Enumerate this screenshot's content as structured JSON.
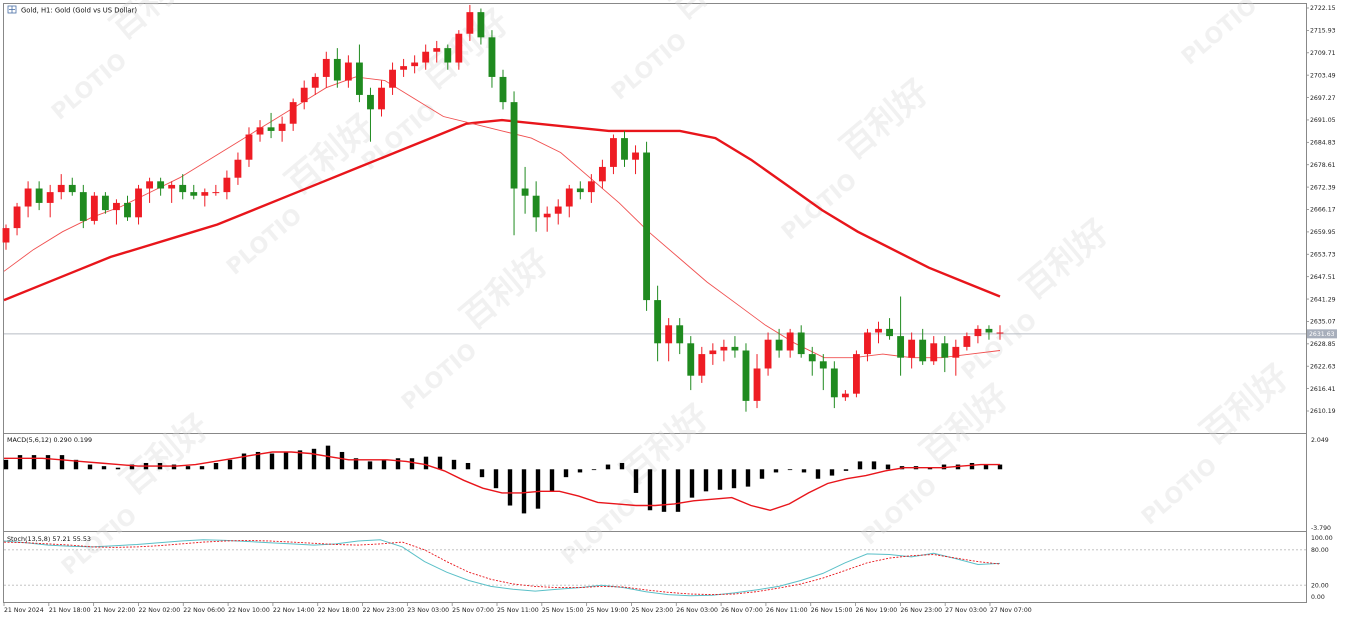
{
  "window": {
    "title": "Gold, H1:  Gold (Gold vs US Dollar)",
    "icon": "chart-window-icon"
  },
  "watermark": {
    "brand": "PLOTIO",
    "chinese": "百利好"
  },
  "colors": {
    "bull": "#1f8a1f",
    "bear": "#ee1c24",
    "ma_slow": "#e8151b",
    "ma_fast": "#f05050",
    "macd_bar": "#000000",
    "macd_signal": "#e8151b",
    "stoch_main": "#5bc0c8",
    "stoch_signal": "#e8151b",
    "last_price_line": "#b8bcc4",
    "price_tag_bg": "#a7aebb"
  },
  "price_axis": {
    "ticks": [
      "2722.15",
      "2715.93",
      "2709.71",
      "2703.49",
      "2697.27",
      "2691.05",
      "2684.83",
      "2678.61",
      "2672.39",
      "2666.17",
      "2659.95",
      "2653.73",
      "2647.51",
      "2641.29",
      "2635.07",
      "2628.85",
      "2622.63",
      "2616.41",
      "2610.19"
    ],
    "current_price": "2631.63"
  },
  "time_axis": {
    "labels": [
      "21 Nov 2024",
      "21 Nov 18:00",
      "21 Nov 22:00",
      "22 Nov 02:00",
      "22 Nov 06:00",
      "22 Nov 10:00",
      "22 Nov 14:00",
      "22 Nov 18:00",
      "22 Nov 23:00",
      "23 Nov 03:00",
      "25 Nov 07:00",
      "25 Nov 11:00",
      "25 Nov 15:00",
      "25 Nov 19:00",
      "25 Nov 23:00",
      "26 Nov 03:00",
      "26 Nov 07:00",
      "26 Nov 11:00",
      "26 Nov 15:00",
      "26 Nov 19:00",
      "26 Nov 23:00",
      "27 Nov 03:00",
      "27 Nov 07:00"
    ]
  },
  "macd": {
    "label": "MACD(5,6,12) 0.290 0.199",
    "axis_top": "2.049",
    "axis_bottom": "-3.790"
  },
  "stoch": {
    "label": "Stoch(13,5,8) 57.21 55.53",
    "ticks": [
      "100.00",
      "80.00",
      "20.00",
      "0.00"
    ]
  },
  "chart_data": [
    {
      "type": "candlestick",
      "title": "Gold, H1:  Gold (Gold vs US Dollar)",
      "ylim": [
        2604.5,
        2723.8
      ],
      "ohlc": [
        [
          2657,
          2662,
          2655,
          2661
        ],
        [
          2661,
          2668,
          2659,
          2667
        ],
        [
          2667,
          2674,
          2664,
          2672
        ],
        [
          2672,
          2674,
          2666,
          2668
        ],
        [
          2668,
          2673,
          2664,
          2671
        ],
        [
          2671,
          2676,
          2669,
          2673
        ],
        [
          2673,
          2675,
          2670,
          2671
        ],
        [
          2671,
          2673,
          2661,
          2663
        ],
        [
          2663,
          2671,
          2662,
          2670
        ],
        [
          2670,
          2671,
          2665,
          2666
        ],
        [
          2666,
          2669,
          2662,
          2668
        ],
        [
          2668,
          2670,
          2663,
          2664
        ],
        [
          2664,
          2673,
          2662,
          2672
        ],
        [
          2672,
          2675,
          2668,
          2674
        ],
        [
          2674,
          2675,
          2670,
          2672
        ],
        [
          2672,
          2674,
          2668,
          2673
        ],
        [
          2673,
          2676,
          2669,
          2671
        ],
        [
          2671,
          2673,
          2669,
          2670
        ],
        [
          2670,
          2672,
          2667,
          2671
        ],
        [
          2671,
          2673,
          2670,
          2671
        ],
        [
          2671,
          2677,
          2669,
          2675
        ],
        [
          2675,
          2682,
          2673,
          2680
        ],
        [
          2680,
          2689,
          2678,
          2687
        ],
        [
          2687,
          2691,
          2685,
          2689
        ],
        [
          2689,
          2693,
          2686,
          2688
        ],
        [
          2688,
          2692,
          2685,
          2690
        ],
        [
          2690,
          2697,
          2688,
          2696
        ],
        [
          2696,
          2702,
          2694,
          2700
        ],
        [
          2700,
          2704,
          2698,
          2703
        ],
        [
          2703,
          2710,
          2700,
          2708
        ],
        [
          2708,
          2711,
          2700,
          2702
        ],
        [
          2702,
          2709,
          2700,
          2707
        ],
        [
          2707,
          2712,
          2696,
          2698
        ],
        [
          2698,
          2700,
          2685,
          2694
        ],
        [
          2694,
          2702,
          2692,
          2700
        ],
        [
          2700,
          2707,
          2698,
          2705
        ],
        [
          2705,
          2708,
          2703,
          2706
        ],
        [
          2706,
          2709,
          2704,
          2707
        ],
        [
          2707,
          2712,
          2705,
          2710
        ],
        [
          2710,
          2713,
          2707,
          2711
        ],
        [
          2711,
          2712,
          2705,
          2707
        ],
        [
          2707,
          2716,
          2705,
          2715
        ],
        [
          2715,
          2723,
          2713,
          2721
        ],
        [
          2721,
          2722,
          2712,
          2714
        ],
        [
          2714,
          2716,
          2700,
          2703
        ],
        [
          2703,
          2705,
          2694,
          2696
        ],
        [
          2696,
          2699,
          2659,
          2672
        ],
        [
          2672,
          2678,
          2665,
          2670
        ],
        [
          2670,
          2674,
          2660,
          2664
        ],
        [
          2664,
          2667,
          2660,
          2665
        ],
        [
          2665,
          2669,
          2662,
          2667
        ],
        [
          2667,
          2673,
          2664,
          2672
        ],
        [
          2672,
          2674,
          2669,
          2671
        ],
        [
          2671,
          2676,
          2668,
          2674
        ],
        [
          2674,
          2680,
          2672,
          2678
        ],
        [
          2678,
          2687,
          2676,
          2686
        ],
        [
          2686,
          2688,
          2678,
          2680
        ],
        [
          2680,
          2684,
          2676,
          2682
        ],
        [
          2682,
          2685,
          2638,
          2641
        ],
        [
          2641,
          2645,
          2624,
          2629
        ],
        [
          2629,
          2636,
          2624,
          2634
        ],
        [
          2634,
          2636,
          2626,
          2629
        ],
        [
          2629,
          2631,
          2616,
          2620
        ],
        [
          2620,
          2628,
          2618,
          2626
        ],
        [
          2626,
          2629,
          2623,
          2627
        ],
        [
          2627,
          2630,
          2624,
          2628
        ],
        [
          2628,
          2631,
          2625,
          2627
        ],
        [
          2627,
          2629,
          2610,
          2613
        ],
        [
          2613,
          2626,
          2611,
          2622
        ],
        [
          2622,
          2632,
          2620,
          2630
        ],
        [
          2630,
          2633,
          2625,
          2627
        ],
        [
          2627,
          2633,
          2625,
          2632
        ],
        [
          2632,
          2634,
          2625,
          2626
        ],
        [
          2626,
          2628,
          2620,
          2624
        ],
        [
          2624,
          2626,
          2616,
          2622
        ],
        [
          2622,
          2624,
          2611,
          2614
        ],
        [
          2614,
          2616,
          2613,
          2615
        ],
        [
          2615,
          2627,
          2614,
          2626
        ],
        [
          2626,
          2633,
          2624,
          2632
        ],
        [
          2632,
          2635,
          2629,
          2633
        ],
        [
          2633,
          2636,
          2630,
          2631
        ],
        [
          2631,
          2642,
          2620,
          2625
        ],
        [
          2625,
          2632,
          2622,
          2630
        ],
        [
          2630,
          2633,
          2623,
          2624
        ],
        [
          2624,
          2631,
          2623,
          2629
        ],
        [
          2629,
          2631,
          2621,
          2625
        ],
        [
          2625,
          2630,
          2620,
          2628
        ],
        [
          2628,
          2632,
          2627,
          2631
        ],
        [
          2631,
          2634,
          2629,
          2633
        ],
        [
          2633,
          2634,
          2630,
          2632
        ],
        [
          2632,
          2634,
          2630,
          2632
        ]
      ],
      "series": [
        {
          "values_ma_slow": [
            2641,
            2645,
            2649,
            2653,
            2656,
            2659,
            2662,
            2666,
            2670,
            2674,
            2678,
            2682,
            2686,
            2690,
            2691,
            2690,
            2689,
            2688,
            2688,
            2688,
            2686,
            2680,
            2673,
            2666,
            2660,
            2655,
            2650,
            2646,
            2642
          ]
        },
        {
          "values_ma_fast": [
            2649,
            2655,
            2660,
            2664,
            2667,
            2671,
            2675,
            2680,
            2685,
            2690,
            2695,
            2700,
            2703,
            2702,
            2697,
            2692,
            2690,
            2688,
            2686,
            2682,
            2675,
            2668,
            2660,
            2653,
            2646,
            2640,
            2634,
            2629,
            2625,
            2625,
            2626,
            2625,
            2625,
            2626,
            2627
          ]
        }
      ]
    },
    {
      "type": "bar",
      "title": "MACD(5,6,12) 0.290 0.199",
      "ylim": [
        -3.79,
        2.049
      ],
      "values": [
        0.6,
        0.9,
        0.9,
        0.9,
        0.9,
        0.6,
        0.3,
        0.2,
        0.1,
        0.3,
        0.4,
        0.4,
        0.3,
        0.2,
        0.2,
        0.4,
        0.6,
        1.0,
        1.1,
        1.0,
        1.1,
        1.2,
        1.3,
        1.5,
        1.1,
        0.7,
        0.5,
        0.6,
        0.7,
        0.7,
        0.8,
        0.8,
        0.6,
        0.4,
        -0.5,
        -1.2,
        -2.3,
        -2.8,
        -2.5,
        -1.4,
        -0.5,
        -0.2,
        0.0,
        0.3,
        0.4,
        -1.5,
        -2.6,
        -2.7,
        -2.7,
        -1.8,
        -1.4,
        -1.3,
        -1.2,
        -1.1,
        -0.6,
        -0.2,
        0.0,
        -0.2,
        -0.6,
        -0.4,
        -0.1,
        0.5,
        0.5,
        0.3,
        0.2,
        0.2,
        0.1,
        0.3,
        0.3,
        0.4,
        0.3,
        0.3
      ],
      "signal": [
        0.7,
        0.7,
        0.7,
        0.6,
        0.5,
        0.4,
        0.3,
        0.2,
        0.2,
        0.2,
        0.3,
        0.5,
        0.7,
        0.9,
        1.1,
        1.1,
        1.0,
        0.8,
        0.6,
        0.6,
        0.6,
        0.5,
        0.3,
        -0.1,
        -0.7,
        -1.2,
        -1.5,
        -1.5,
        -1.4,
        -1.4,
        -1.7,
        -2.1,
        -2.2,
        -2.3,
        -2.3,
        -2.2,
        -2.0,
        -1.9,
        -1.8,
        -2.3,
        -2.6,
        -2.2,
        -1.5,
        -0.9,
        -0.6,
        -0.4,
        -0.1,
        0.1,
        0.1,
        0.1,
        0.2,
        0.3,
        0.3
      ]
    },
    {
      "type": "line",
      "title": "Stoch(13,5,8) 57.21 55.53",
      "ylim": [
        0,
        100
      ],
      "series": [
        {
          "main": [
            95,
            92,
            88,
            86,
            85,
            87,
            89,
            92,
            95,
            97,
            96,
            94,
            92,
            90,
            88,
            90,
            95,
            97,
            85,
            60,
            42,
            28,
            18,
            13,
            10,
            13,
            16,
            20,
            16,
            9,
            4,
            2,
            3,
            7,
            12,
            18,
            28,
            40,
            58,
            73,
            72,
            68,
            74,
            65,
            55,
            57
          ]
        },
        {
          "signal": [
            93,
            92,
            90,
            88,
            85,
            84,
            85,
            87,
            90,
            93,
            95,
            96,
            95,
            93,
            91,
            89,
            88,
            90,
            93,
            80,
            60,
            42,
            30,
            22,
            18,
            16,
            16,
            18,
            17,
            12,
            8,
            5,
            4,
            5,
            9,
            15,
            22,
            32,
            45,
            58,
            66,
            70,
            72,
            66,
            60,
            56
          ]
        }
      ]
    }
  ]
}
